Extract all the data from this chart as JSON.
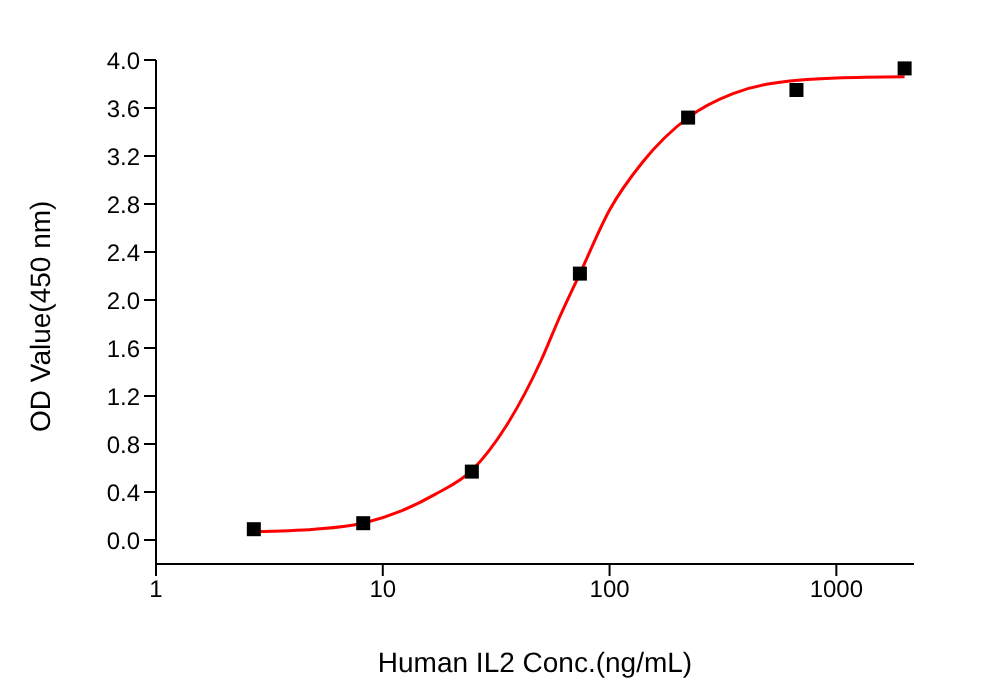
{
  "chart_data": {
    "type": "scatter",
    "xlabel": "Human IL2 Conc.(ng/mL)",
    "ylabel": "OD Value(450 nm)",
    "log": "x",
    "xlim": [
      1,
      2200
    ],
    "xticks": [
      1,
      10,
      100,
      1000
    ],
    "ylim": [
      -0.2,
      4.0
    ],
    "yticks": [
      {
        "value": 0,
        "label": "0.0"
      },
      0.4,
      0.8,
      1.2,
      1.6,
      {
        "value": 2,
        "label": "2.0"
      },
      2.4,
      2.8,
      3.2,
      3.6,
      {
        "value": 4,
        "label": "4.0"
      }
    ],
    "series": [
      {
        "type": "line",
        "color": "#ff0000",
        "marker": "none",
        "line_style": "solid",
        "x": [
          2.7,
          5,
          8.2,
          12,
          17,
          24.7,
          35,
          50,
          60,
          74,
          100,
          140,
          222,
          350,
          500,
          1000,
          2000
        ],
        "values": [
          0.07,
          0.09,
          0.14,
          0.24,
          0.38,
          0.58,
          0.95,
          1.5,
          1.85,
          2.22,
          2.75,
          3.15,
          3.52,
          3.72,
          3.8,
          3.85,
          3.86
        ]
      },
      {
        "color": "#000000",
        "marker": "square",
        "x": [
          2.7,
          8.2,
          24.7,
          74,
          222,
          667,
          2000
        ],
        "values": [
          0.09,
          0.14,
          0.57,
          2.22,
          3.52,
          3.75,
          3.93
        ]
      }
    ]
  }
}
